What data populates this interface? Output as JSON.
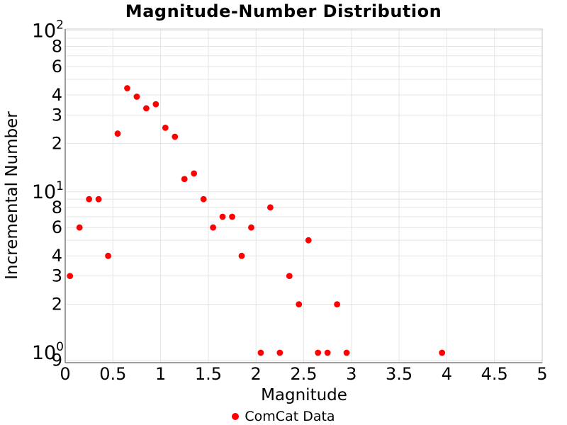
{
  "colors": {
    "marker": "#fe0000",
    "grid": "#e5e5e5",
    "plot_border": "#c8c8c8",
    "axis_line": "#7f7f7f",
    "text": "#000000",
    "background": "#ffffff"
  },
  "chart_data": {
    "type": "scatter",
    "title": "Magnitude-Number Distribution",
    "xlabel": "Magnitude",
    "ylabel": "Incremental Number",
    "grid": true,
    "legend_position": "bottom-center",
    "series": [
      {
        "name": "ComCat Data",
        "marker": "dot",
        "color": "#fe0000",
        "points": [
          [
            0.05,
            3
          ],
          [
            0.15,
            6
          ],
          [
            0.25,
            9
          ],
          [
            0.35,
            9
          ],
          [
            0.45,
            4
          ],
          [
            0.55,
            23
          ],
          [
            0.65,
            44
          ],
          [
            0.75,
            39
          ],
          [
            0.85,
            33
          ],
          [
            0.95,
            35
          ],
          [
            1.05,
            25
          ],
          [
            1.15,
            22
          ],
          [
            1.25,
            12
          ],
          [
            1.35,
            13
          ],
          [
            1.45,
            9
          ],
          [
            1.55,
            6
          ],
          [
            1.65,
            7
          ],
          [
            1.75,
            7
          ],
          [
            1.85,
            4
          ],
          [
            1.95,
            6
          ],
          [
            2.05,
            1
          ],
          [
            2.15,
            8
          ],
          [
            2.25,
            1
          ],
          [
            2.35,
            3
          ],
          [
            2.45,
            2
          ],
          [
            2.55,
            5
          ],
          [
            2.65,
            1
          ],
          [
            2.75,
            1
          ],
          [
            2.85,
            2
          ],
          [
            2.95,
            1
          ],
          [
            3.95,
            1
          ]
        ]
      }
    ],
    "x_axis": {
      "min": 0,
      "max": 5,
      "tick_values": [
        0,
        0.5,
        1,
        1.5,
        2,
        2.5,
        3,
        3.5,
        4,
        4.5,
        5
      ],
      "tick_labels": [
        "0",
        "0.5",
        "1",
        "1.5",
        "2",
        "2.5",
        "3",
        "3.5",
        "4",
        "4.5",
        "5"
      ]
    },
    "y_axis": {
      "scale": "log",
      "range": [
        0.868,
        102.6
      ],
      "major_ticks": [
        {
          "base": "10",
          "exp": "0",
          "value": 1
        },
        {
          "base": "10",
          "exp": "1",
          "value": 10
        },
        {
          "base": "10",
          "exp": "2",
          "value": 100
        }
      ],
      "minor_ticks": [
        {
          "value": 0.9,
          "label": "9"
        },
        {
          "value": 2,
          "label": "2"
        },
        {
          "value": 3,
          "label": "3"
        },
        {
          "value": 4,
          "label": "4"
        },
        {
          "value": 6,
          "label": "6"
        },
        {
          "value": 8,
          "label": "8"
        },
        {
          "value": 20,
          "label": "2"
        },
        {
          "value": 30,
          "label": "3"
        },
        {
          "value": 40,
          "label": "4"
        },
        {
          "value": 60,
          "label": "6"
        },
        {
          "value": 80,
          "label": "8"
        }
      ],
      "gridline_values": [
        0.9,
        2,
        3,
        4,
        5,
        6,
        7,
        8,
        9,
        10,
        20,
        30,
        40,
        50,
        60,
        70,
        80,
        90,
        100
      ]
    }
  }
}
